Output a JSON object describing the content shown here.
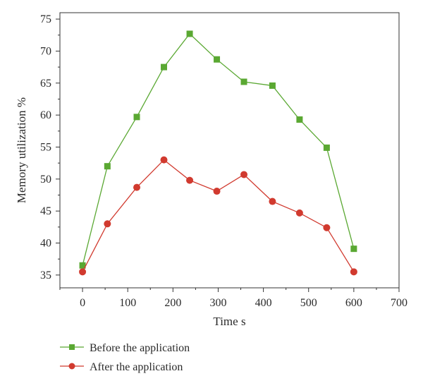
{
  "chart_data": {
    "type": "line",
    "xlabel": "Time s",
    "ylabel": "Memory utilization %",
    "xlim": [
      -50,
      700
    ],
    "ylim": [
      33,
      76
    ],
    "xticks": [
      0,
      100,
      200,
      300,
      400,
      500,
      600,
      700
    ],
    "yticks": [
      35,
      40,
      45,
      50,
      55,
      60,
      65,
      70,
      75
    ],
    "legend_position": "bottom-left",
    "grid": false,
    "series": [
      {
        "name": "Before the application",
        "color": "#5aa832",
        "marker": "square",
        "x": [
          0,
          55,
          120,
          180,
          237,
          297,
          357,
          420,
          480,
          540,
          600
        ],
        "y": [
          36.5,
          52.0,
          59.7,
          67.5,
          72.7,
          68.7,
          65.2,
          64.6,
          59.3,
          54.9,
          39.1
        ]
      },
      {
        "name": "After the application",
        "color": "#d13a2f",
        "marker": "circle",
        "x": [
          0,
          55,
          120,
          180,
          237,
          297,
          357,
          420,
          480,
          540,
          600
        ],
        "y": [
          35.5,
          43.0,
          48.7,
          53.0,
          49.8,
          48.1,
          50.7,
          46.5,
          44.7,
          42.4,
          35.5
        ]
      }
    ]
  }
}
